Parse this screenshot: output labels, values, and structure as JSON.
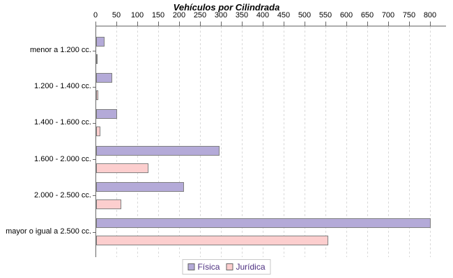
{
  "title": "Vehículos por Cilindrada",
  "chart_data": {
    "type": "bar",
    "orientation": "horizontal",
    "title": "Vehículos por Cilindrada",
    "categories": [
      "menor a 1.200 cc.",
      "1.200 - 1.400 cc.",
      "1.400 - 1.600 cc.",
      "1.600 - 2.000 cc.",
      "2.000 - 2.500 cc.",
      "mayor o igual a 2.500 cc."
    ],
    "series": [
      {
        "name": "Física",
        "color": "#b4aad8",
        "values": [
          20,
          38,
          50,
          295,
          210,
          800
        ]
      },
      {
        "name": "Jurídica",
        "color": "#fccece",
        "values": [
          3,
          5,
          10,
          125,
          60,
          555
        ]
      }
    ],
    "xlim": [
      0,
      800
    ],
    "x_tick_step": 50,
    "x_tick_labels": [
      "0",
      "50",
      "100",
      "150",
      "200",
      "250",
      "300",
      "350",
      "400",
      "450",
      "500",
      "550",
      "600",
      "650",
      "700",
      "750",
      "800"
    ],
    "grid": "dashed-vertical",
    "legend_position": "bottom"
  },
  "legend": {
    "items": [
      {
        "label": "Física",
        "color": "#b4aad8"
      },
      {
        "label": "Jurídica",
        "color": "#fccece"
      }
    ]
  },
  "colors": {
    "bar_border": "#808080",
    "axis": "#666666",
    "gridline": "#d9d9d9",
    "legend_text": "#4b2d7f",
    "title_text": "#000000",
    "background": "#ffffff"
  }
}
